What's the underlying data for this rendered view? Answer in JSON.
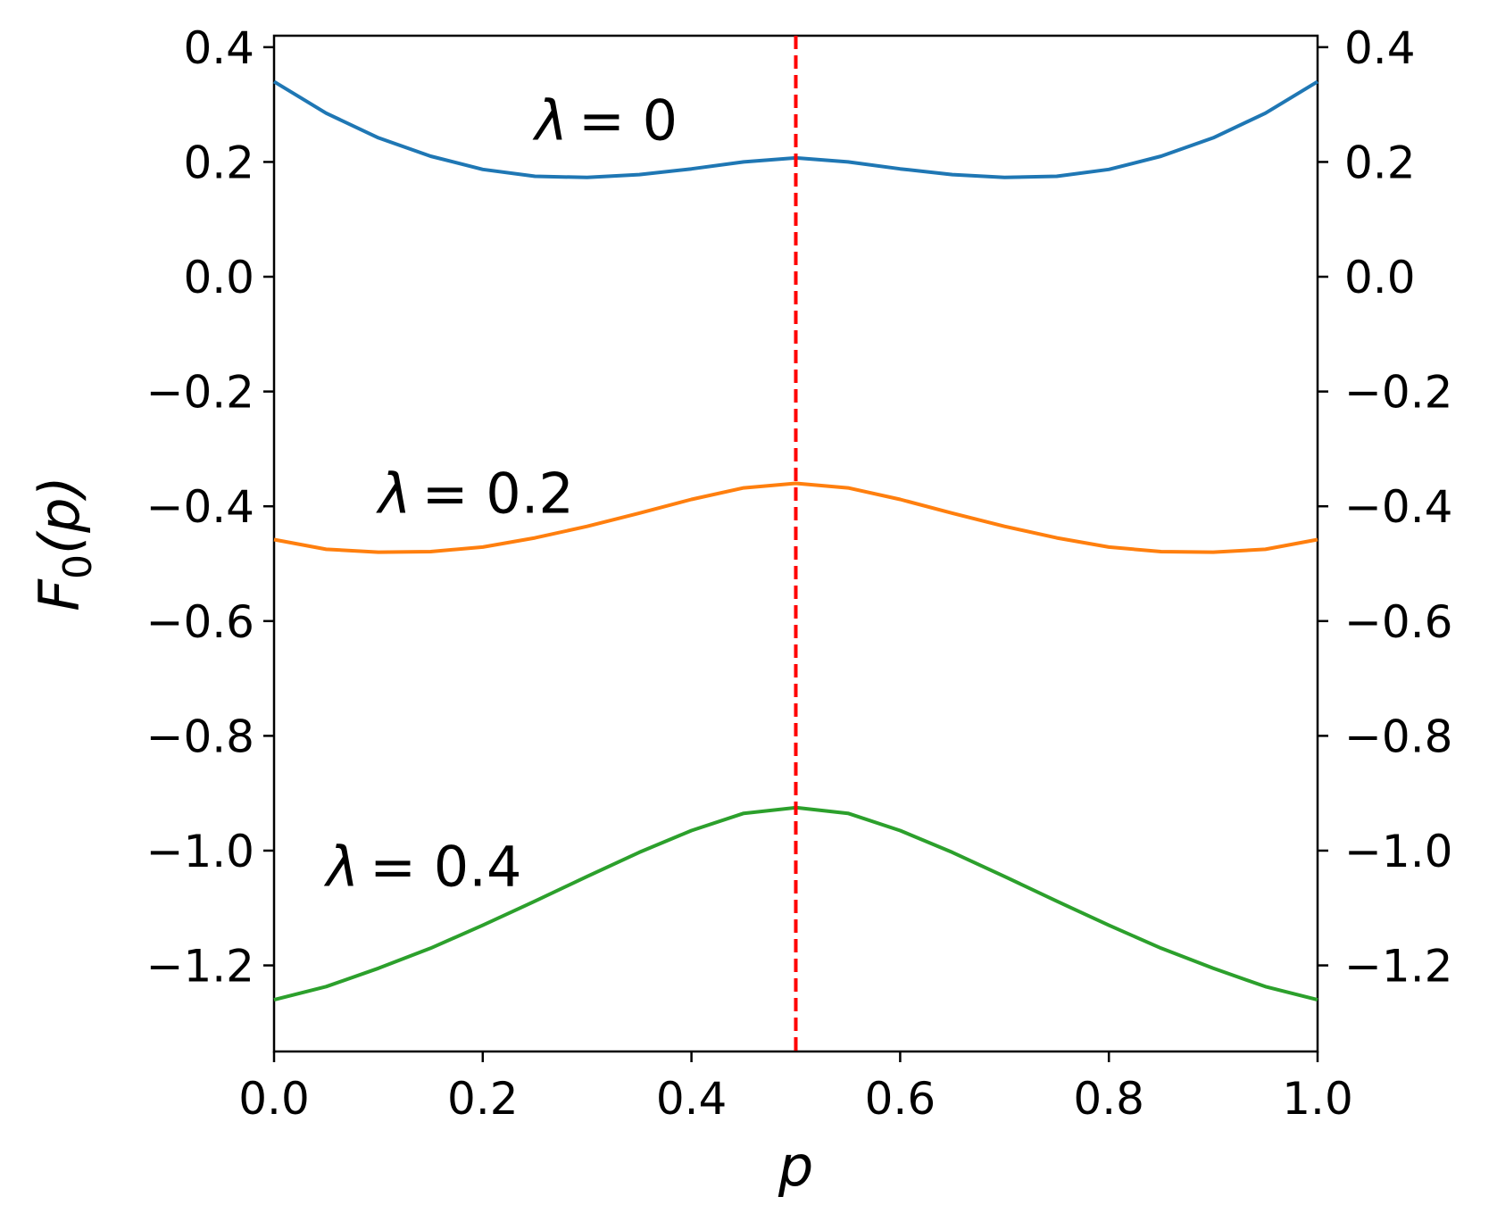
{
  "chart_data": {
    "type": "line",
    "xlabel": "p",
    "ylabel": {
      "base": "F",
      "sub": "0",
      "suffix": "(p)"
    },
    "xlim": [
      0.0,
      1.0
    ],
    "ylim": [
      -1.35,
      0.42
    ],
    "xticks": [
      "0.0",
      "0.2",
      "0.4",
      "0.6",
      "0.8",
      "1.0"
    ],
    "yticks": [
      "0.4",
      "0.2",
      "0.0",
      "−0.2",
      "−0.4",
      "−0.6",
      "−0.8",
      "−1.0",
      "−1.2"
    ],
    "ytick_values": [
      0.4,
      0.2,
      0.0,
      -0.2,
      -0.4,
      -0.6,
      -0.8,
      -1.0,
      -1.2
    ],
    "xtick_values": [
      0.0,
      0.2,
      0.4,
      0.6,
      0.8,
      1.0
    ],
    "grid": false,
    "legend": "none",
    "x": [
      0.0,
      0.05,
      0.1,
      0.15,
      0.2,
      0.25,
      0.3,
      0.35,
      0.4,
      0.45,
      0.5,
      0.55,
      0.6,
      0.65,
      0.7,
      0.75,
      0.8,
      0.85,
      0.9,
      0.95,
      1.0
    ],
    "series": [
      {
        "color": "#1f77b4",
        "values": [
          0.34,
          0.285,
          0.242,
          0.21,
          0.187,
          0.175,
          0.173,
          0.178,
          0.188,
          0.2,
          0.207,
          0.2,
          0.188,
          0.178,
          0.173,
          0.175,
          0.187,
          0.21,
          0.242,
          0.285,
          0.34
        ]
      },
      {
        "color": "#ff7f0e",
        "values": [
          -0.458,
          -0.475,
          -0.48,
          -0.479,
          -0.471,
          -0.455,
          -0.435,
          -0.412,
          -0.388,
          -0.368,
          -0.36,
          -0.368,
          -0.388,
          -0.412,
          -0.435,
          -0.455,
          -0.471,
          -0.479,
          -0.48,
          -0.475,
          -0.458
        ]
      },
      {
        "color": "#2ca02c",
        "values": [
          -1.26,
          -1.237,
          -1.205,
          -1.17,
          -1.13,
          -1.088,
          -1.045,
          -1.003,
          -0.965,
          -0.935,
          -0.925,
          -0.935,
          -0.965,
          -1.003,
          -1.045,
          -1.088,
          -1.13,
          -1.17,
          -1.205,
          -1.237,
          -1.26
        ]
      }
    ],
    "vline": {
      "x": 0.5,
      "color": "#ff0000",
      "style": "dashed"
    },
    "annotations": [
      {
        "symbol": "λ",
        "text": "= 0",
        "x": 0.25,
        "y": 0.27
      },
      {
        "symbol": "λ",
        "text": "= 0.2",
        "x": 0.1,
        "y": -0.38
      },
      {
        "symbol": "λ",
        "text": "= 0.4",
        "x": 0.05,
        "y": -1.03
      }
    ]
  }
}
